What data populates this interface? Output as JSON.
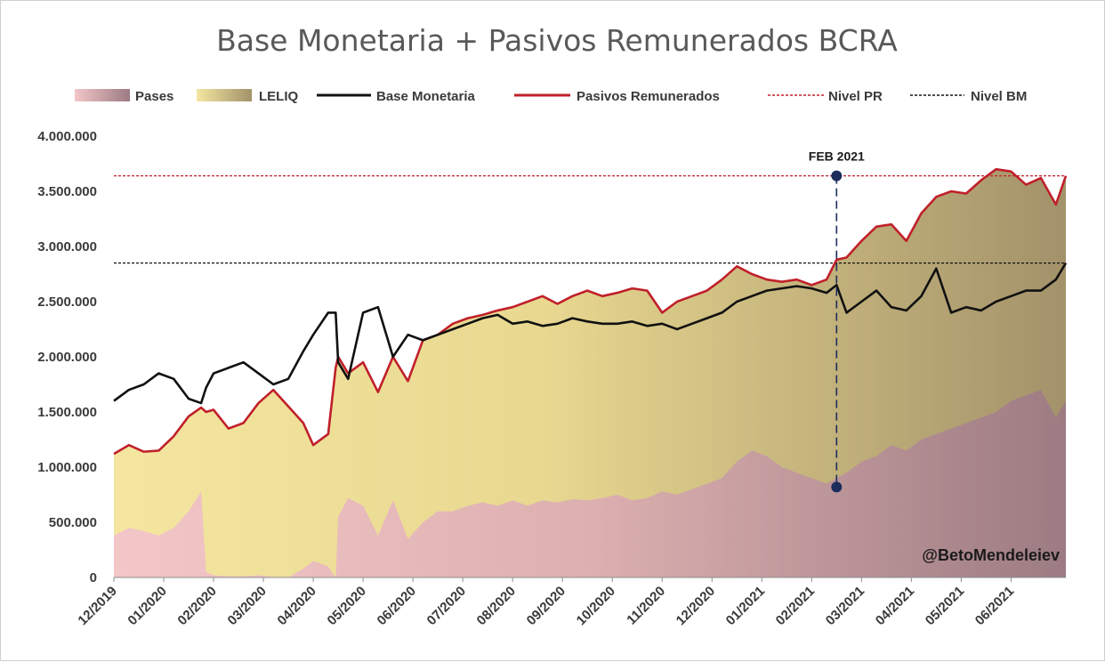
{
  "chart_data": {
    "type": "area",
    "title": "Base Monetaria + Pasivos Remunerados BCRA",
    "xlabel": "",
    "ylabel": "",
    "ylim": [
      0,
      4000000
    ],
    "yticks": [
      0,
      500000,
      1000000,
      1500000,
      2000000,
      2500000,
      3000000,
      3500000,
      4000000
    ],
    "ytick_labels": [
      "0",
      "500.000",
      "1.000.000",
      "1.500.000",
      "2.000.000",
      "2.500.000",
      "3.000.000",
      "3.500.000",
      "4.000.000"
    ],
    "x_range": [
      "12/2019",
      "07/2021"
    ],
    "xtick_labels": [
      "12/2019",
      "01/2020",
      "02/2020",
      "03/2020",
      "04/2020",
      "05/2020",
      "06/2020",
      "07/2020",
      "08/2020",
      "09/2020",
      "10/2020",
      "11/2020",
      "12/2020",
      "01/2021",
      "02/2021",
      "03/2021",
      "04/2021",
      "05/2021",
      "06/2021"
    ],
    "legend_position": "top",
    "x": [
      0,
      0.3,
      0.6,
      0.9,
      1.2,
      1.5,
      1.75,
      1.85,
      2.0,
      2.3,
      2.6,
      2.9,
      3.2,
      3.5,
      3.8,
      4.0,
      4.3,
      4.45,
      4.5,
      4.7,
      5.0,
      5.3,
      5.6,
      5.9,
      6.2,
      6.5,
      6.8,
      7.1,
      7.4,
      7.7,
      8.0,
      8.3,
      8.6,
      8.9,
      9.2,
      9.5,
      9.8,
      10.1,
      10.4,
      10.7,
      11.0,
      11.3,
      11.6,
      11.9,
      12.2,
      12.5,
      12.8,
      13.1,
      13.4,
      13.7,
      14.0,
      14.3,
      14.5,
      14.7,
      15.0,
      15.3,
      15.6,
      15.9,
      16.2,
      16.5,
      16.8,
      17.1,
      17.4,
      17.7,
      18.0,
      18.3,
      18.6,
      18.9,
      19.1
    ],
    "series": [
      {
        "name": "Pases",
        "style": "area",
        "color": "#a87f88",
        "values": [
          380000,
          450000,
          420000,
          380000,
          450000,
          600000,
          780000,
          50000,
          20000,
          10000,
          10000,
          20000,
          5000,
          0,
          80000,
          150000,
          100000,
          0,
          550000,
          720000,
          650000,
          380000,
          700000,
          350000,
          500000,
          600000,
          600000,
          650000,
          680000,
          650000,
          700000,
          650000,
          700000,
          680000,
          710000,
          700000,
          720000,
          750000,
          700000,
          720000,
          780000,
          750000,
          800000,
          850000,
          900000,
          1050000,
          1150000,
          1100000,
          1000000,
          950000,
          900000,
          850000,
          900000,
          950000,
          1050000,
          1100000,
          1200000,
          1150000,
          1250000,
          1300000,
          1350000,
          1400000,
          1450000,
          1500000,
          1600000,
          1650000,
          1700000,
          1450000,
          1600000
        ]
      },
      {
        "name": "LELIQ",
        "style": "area",
        "color": "#a3926a",
        "values": [
          1120000,
          1200000,
          1140000,
          1150000,
          1280000,
          1460000,
          1540000,
          1500000,
          1520000,
          1350000,
          1400000,
          1580000,
          1700000,
          1550000,
          1400000,
          1200000,
          1300000,
          1900000,
          2000000,
          1850000,
          1950000,
          1680000,
          2000000,
          1780000,
          2150000,
          2200000,
          2300000,
          2350000,
          2380000,
          2420000,
          2450000,
          2500000,
          2550000,
          2480000,
          2550000,
          2600000,
          2550000,
          2580000,
          2620000,
          2600000,
          2400000,
          2500000,
          2550000,
          2600000,
          2700000,
          2820000,
          2750000,
          2700000,
          2680000,
          2700000,
          2650000,
          2700000,
          2880000,
          2900000,
          3050000,
          3180000,
          3200000,
          3050000,
          3300000,
          3450000,
          3500000,
          3480000,
          3600000,
          3700000,
          3680000,
          3560000,
          3620000,
          3380000,
          3640000
        ]
      },
      {
        "name": "Base Monetaria",
        "style": "line",
        "color": "#111111",
        "values": [
          1600000,
          1700000,
          1750000,
          1850000,
          1800000,
          1620000,
          1580000,
          1720000,
          1850000,
          1900000,
          1950000,
          1850000,
          1750000,
          1800000,
          2050000,
          2200000,
          2400000,
          2400000,
          1950000,
          1800000,
          2400000,
          2450000,
          2000000,
          2200000,
          2150000,
          2200000,
          2250000,
          2300000,
          2350000,
          2380000,
          2300000,
          2320000,
          2280000,
          2300000,
          2350000,
          2320000,
          2300000,
          2300000,
          2320000,
          2280000,
          2300000,
          2250000,
          2300000,
          2350000,
          2400000,
          2500000,
          2550000,
          2600000,
          2620000,
          2640000,
          2620000,
          2580000,
          2650000,
          2400000,
          2500000,
          2600000,
          2450000,
          2420000,
          2550000,
          2800000,
          2400000,
          2450000,
          2420000,
          2500000,
          2550000,
          2600000,
          2600000,
          2700000,
          2850000
        ]
      },
      {
        "name": "Pasivos Remunerados",
        "style": "line",
        "color": "#c0202a",
        "values": [
          1120000,
          1200000,
          1140000,
          1150000,
          1280000,
          1460000,
          1540000,
          1500000,
          1520000,
          1350000,
          1400000,
          1580000,
          1700000,
          1550000,
          1400000,
          1200000,
          1300000,
          1900000,
          2000000,
          1850000,
          1950000,
          1680000,
          2000000,
          1780000,
          2150000,
          2200000,
          2300000,
          2350000,
          2380000,
          2420000,
          2450000,
          2500000,
          2550000,
          2480000,
          2550000,
          2600000,
          2550000,
          2580000,
          2620000,
          2600000,
          2400000,
          2500000,
          2550000,
          2600000,
          2700000,
          2820000,
          2750000,
          2700000,
          2680000,
          2700000,
          2650000,
          2700000,
          2880000,
          2900000,
          3050000,
          3180000,
          3200000,
          3050000,
          3300000,
          3450000,
          3500000,
          3480000,
          3600000,
          3700000,
          3680000,
          3560000,
          3620000,
          3380000,
          3640000
        ]
      },
      {
        "name": "Nivel PR",
        "style": "dashed",
        "color": "#c0202a",
        "value": 3640000
      },
      {
        "name": "Nivel BM",
        "style": "dashed",
        "color": "#111111",
        "value": 2850000
      }
    ],
    "annotations": [
      {
        "label": "FEB 2021",
        "x": 14.5,
        "y_top": 3640000,
        "y_bottom": 820000
      }
    ],
    "watermark": "@BetoMendeleiev"
  }
}
